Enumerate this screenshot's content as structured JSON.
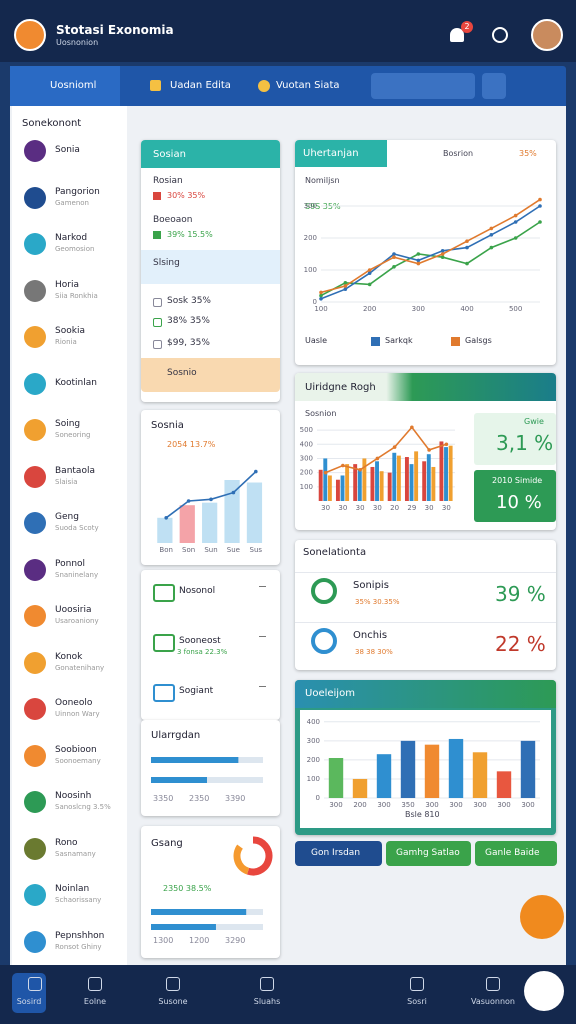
{
  "header": {
    "title": "Stotasi Exonomia",
    "subtitle": "Uosnonion",
    "badge": "2"
  },
  "toolbar": {
    "items": [
      "Uosnioml",
      "Uadan Edita",
      "Vuotan Siata"
    ]
  },
  "sidebar": {
    "heading": "Sonekonont",
    "items": [
      {
        "name": "Sonia"
      },
      {
        "name": "Pangorion",
        "sub": "Gamenon"
      },
      {
        "name": "Narkod",
        "sub": "Geomosion"
      },
      {
        "name": "Horia",
        "sub": "Siia Ronkhia"
      },
      {
        "name": "Sookia",
        "sub": "Rionia"
      },
      {
        "name": "Kootinlan"
      },
      {
        "name": "Soing",
        "sub": "Soneoring"
      },
      {
        "name": "Bantaola",
        "sub": "Slaisia"
      },
      {
        "name": "Geng",
        "sub": "Suoda Scoty"
      },
      {
        "name": "Ponnol",
        "sub": "Snaninelany"
      },
      {
        "name": "Uoosiria",
        "sub": "Usaroaniony"
      },
      {
        "name": "Konok",
        "sub": "Gonatenihany"
      },
      {
        "name": "Ooneolo",
        "sub": "Uinnon Wary"
      },
      {
        "name": "Soobioon",
        "sub": "Soonoemany"
      },
      {
        "name": "Noosinh",
        "sub": "Sanoslcng 3.5%"
      },
      {
        "name": "Rono",
        "sub": "Sasnamany"
      },
      {
        "name": "Noinlan",
        "sub": "Schaorissany"
      },
      {
        "name": "Pepnshhon",
        "sub": "Ronsot Ghiny"
      }
    ]
  },
  "sosian": {
    "title": "Sosian",
    "rows": [
      {
        "label": "Rosian",
        "value": "30% 35%"
      },
      {
        "label": "Boeoaon",
        "value": "39% 15.5%"
      },
      {
        "label": "Slsing"
      },
      {
        "label": "Sosk 35%"
      },
      {
        "label": "38% 35%"
      },
      {
        "label": "$99, 35%"
      },
      {
        "label": "Sosnio"
      }
    ]
  },
  "sosnia": {
    "title": "Sosnia",
    "value": "2054 13.7%"
  },
  "list_items": [
    {
      "label": "Nosonol"
    },
    {
      "label": "Sooneost",
      "sub": "3 fonsa 22.3%"
    },
    {
      "label": "Sogiant"
    }
  ],
  "ularrgdan": {
    "title": "Ularrgdan",
    "labels": [
      "3350",
      "2350",
      "3390"
    ]
  },
  "gsang": {
    "title": "Gsang",
    "value": "2350 38.5%",
    "labels": [
      "1300",
      "1200",
      "3290"
    ]
  },
  "line_card": {
    "title": "Uhertanjan",
    "tag": "Bosrion",
    "pct": "35%",
    "subtitle": "Nomiljsn",
    "annotation": "S9S 35%"
  },
  "bar_card": {
    "title": "Uiridgne Rogh",
    "subtitle": "Sosnion",
    "tiles": [
      {
        "label": "Gwie",
        "value": "3,1 %"
      },
      {
        "label": "2010 Simide",
        "value": "10 %"
      }
    ]
  },
  "relations": {
    "title": "Sonelationta",
    "rows": [
      {
        "name": "Sonipis",
        "detail": "35% 30.35%",
        "value": "39 %"
      },
      {
        "name": "Onchis",
        "detail": "38 38 30%",
        "value": "22 %"
      }
    ]
  },
  "bottom_card": {
    "title": "Uoeleijom",
    "caption": "Bsle 810"
  },
  "buttons": [
    "Gon Irsdan",
    "Gamhg Satlao",
    "Ganle Baide"
  ],
  "nav": [
    "Sosird",
    "Eolne",
    "Susone",
    "Sluahs",
    "Sosri",
    "Vasuonnon"
  ],
  "chart_data": [
    {
      "type": "line",
      "categories": [
        "100",
        null,
        "200",
        null,
        "300",
        null,
        "400",
        null,
        "500",
        null
      ],
      "ylim": [
        0,
        400
      ],
      "yticks": [
        0,
        100,
        200,
        300
      ],
      "grid": true,
      "series": [
        {
          "name": "Uasle",
          "color": "#3aa34a",
          "values": [
            20,
            60,
            55,
            110,
            150,
            140,
            120,
            170,
            200,
            250
          ]
        },
        {
          "name": "Sarkqk",
          "color": "#2f6fb5",
          "values": [
            10,
            40,
            90,
            150,
            130,
            160,
            170,
            210,
            250,
            300
          ]
        },
        {
          "name": "Galsgs",
          "color": "#e07a2e",
          "values": [
            30,
            50,
            100,
            140,
            120,
            150,
            190,
            230,
            270,
            320
          ]
        }
      ]
    },
    {
      "type": "bar",
      "categories": [
        "30",
        "30",
        "30",
        "30",
        "20",
        "29",
        "30",
        "30"
      ],
      "ylim": [
        0,
        550
      ],
      "yticks": [
        100,
        200,
        300,
        400,
        500
      ],
      "grid": true,
      "series": [
        {
          "name": "A",
          "color": "#d9463e",
          "values": [
            220,
            150,
            260,
            240,
            200,
            310,
            280,
            420
          ]
        },
        {
          "name": "B",
          "color": "#2f8fd0",
          "values": [
            300,
            180,
            220,
            280,
            340,
            260,
            330,
            380
          ]
        },
        {
          "name": "C",
          "color": "#f0a030",
          "values": [
            180,
            260,
            300,
            210,
            320,
            350,
            240,
            390
          ]
        },
        {
          "name": "D",
          "color": "#e07a2e",
          "type": "line",
          "values": [
            200,
            250,
            220,
            300,
            380,
            520,
            360,
            400
          ]
        }
      ]
    },
    {
      "type": "bar",
      "categories": [
        "Bon",
        "Son",
        "Sun",
        "Sue",
        "Sus"
      ],
      "ylim": [
        0,
        100
      ],
      "series": [
        {
          "name": "A",
          "color": "#bfe0f3",
          "values": [
            30,
            45,
            48,
            75,
            72
          ]
        },
        {
          "name": "B",
          "color": "#2f6fb5",
          "type": "line",
          "values": [
            30,
            50,
            52,
            60,
            85
          ]
        }
      ]
    },
    {
      "type": "bar",
      "categories": [
        "300",
        "200",
        "300",
        "350",
        "300",
        "300",
        "300",
        "300",
        "300"
      ],
      "ylim": [
        0,
        420
      ],
      "yticks": [
        0,
        100,
        200,
        300,
        400
      ],
      "grid": true,
      "values": [
        210,
        100,
        230,
        300,
        280,
        310,
        240,
        140,
        300
      ],
      "colors": [
        "#5bb85d",
        "#f0a030",
        "#2f8fd0",
        "#2f6fb5",
        "#f08a30",
        "#2f8fd0",
        "#f0a030",
        "#e8573f",
        "#2f6fb5"
      ]
    },
    {
      "type": "hbar",
      "xlim": [
        0,
        100
      ],
      "values": [
        78,
        50
      ],
      "colors": [
        "#2f8fd0",
        "#2f8fd0"
      ]
    },
    {
      "type": "pie",
      "values": [
        55,
        30,
        15
      ],
      "colors": [
        "#e8463e",
        "#f59a2f",
        "#ffffff"
      ]
    },
    {
      "type": "hbar",
      "xlim": [
        0,
        100
      ],
      "values": [
        85,
        58
      ],
      "colors": [
        "#2f8fd0",
        "#2f8fd0"
      ]
    }
  ]
}
